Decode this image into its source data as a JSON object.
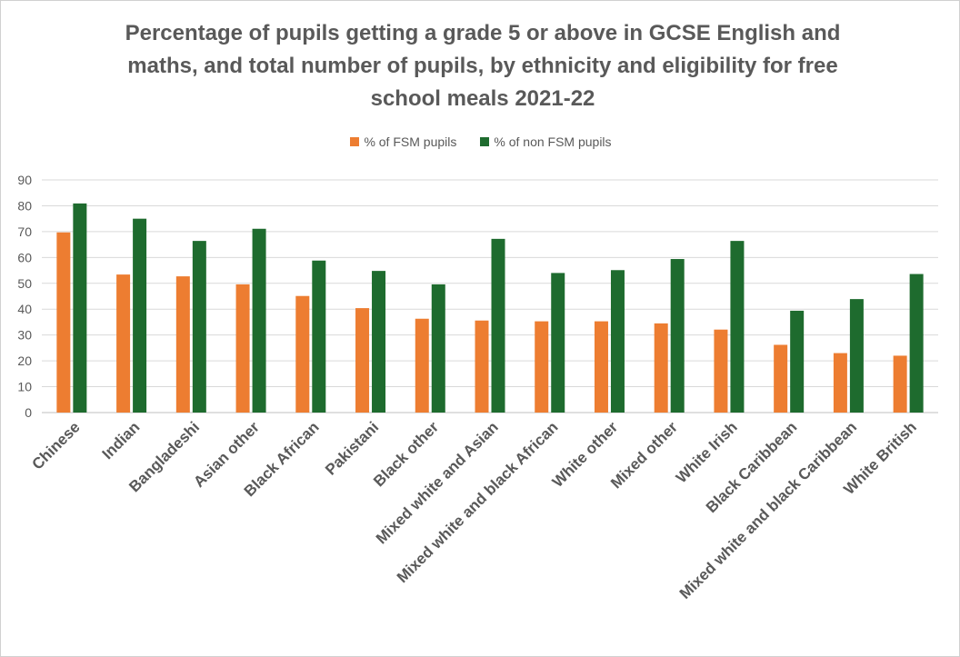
{
  "chart_data": {
    "type": "bar",
    "title": "Percentage of pupils getting a grade 5 or above in GCSE English and maths, and total number of pupils, by ethnicity and eligibility for free school meals 2021-22",
    "title_lines": [
      "Percentage of pupils getting a grade 5 or above in GCSE English and",
      "maths, and total number of pupils, by ethnicity and eligibility for free",
      "school meals 2021-22"
    ],
    "categories": [
      "Chinese",
      "Indian",
      "Bangladeshi",
      "Asian other",
      "Black African",
      "Pakistani",
      "Black other",
      "Mixed white and Asian",
      "Mixed white and black African",
      "White other",
      "Mixed other",
      "White Irish",
      "Black Caribbean",
      "Mixed white and black Caribbean",
      "White British"
    ],
    "series": [
      {
        "name": "% of FSM pupils",
        "color": "#ED7D31",
        "values": [
          69.7,
          53.4,
          52.7,
          49.6,
          45.1,
          40.4,
          36.3,
          35.6,
          35.3,
          35.3,
          34.5,
          32.1,
          26.2,
          23.0,
          22.0
        ]
      },
      {
        "name": "% of non FSM pupils",
        "color": "#1E6B2E",
        "values": [
          80.9,
          75.0,
          66.4,
          71.1,
          58.8,
          54.8,
          49.6,
          67.2,
          54.0,
          55.1,
          59.4,
          66.4,
          39.4,
          43.9,
          53.6
        ]
      }
    ],
    "ylim": [
      0,
      90
    ],
    "yticks": [
      0,
      10,
      20,
      30,
      40,
      50,
      60,
      70,
      80,
      90
    ],
    "xlabel": "",
    "ylabel": "",
    "grid": true,
    "legend_position": "top"
  }
}
